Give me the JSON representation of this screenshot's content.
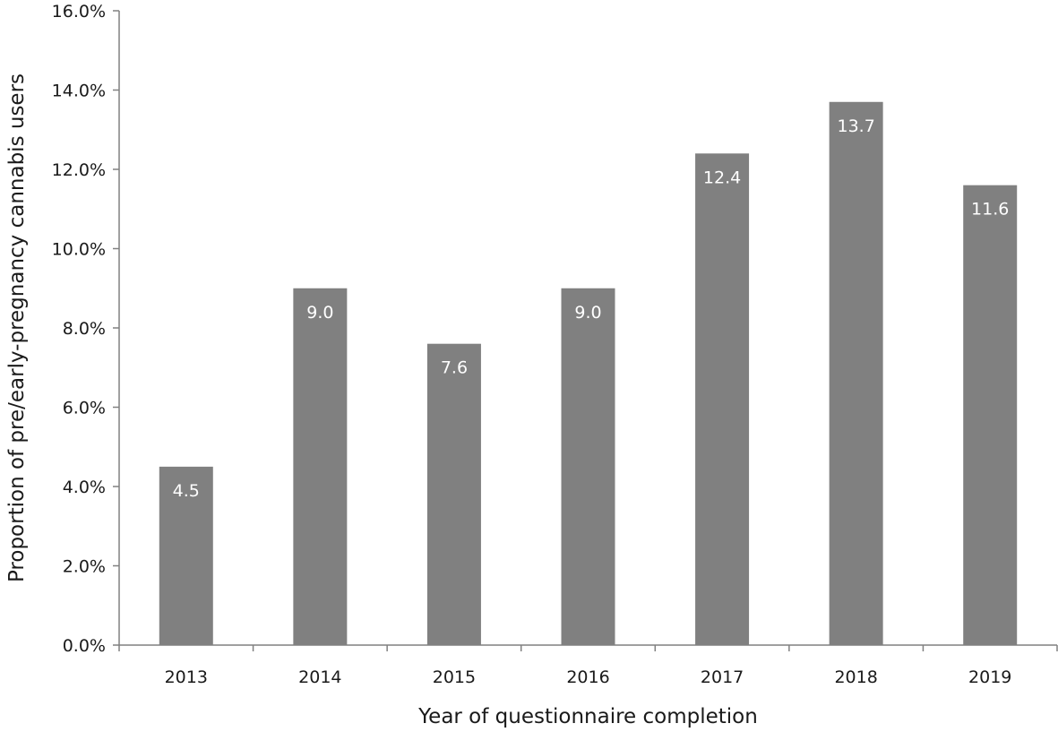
{
  "chart_data": {
    "type": "bar",
    "title": "",
    "xlabel": "Year of questionnaire completion",
    "ylabel": "Proportion of pre/early-pregnancy cannabis users",
    "categories": [
      "2013",
      "2014",
      "2015",
      "2016",
      "2017",
      "2018",
      "2019"
    ],
    "values": [
      4.5,
      9.0,
      7.6,
      9.0,
      12.4,
      13.7,
      11.6
    ],
    "data_labels": [
      "4.5",
      "9.0",
      "7.6",
      "9.0",
      "12.4",
      "13.7",
      "11.6"
    ],
    "ylim": [
      0,
      16
    ],
    "yticks": [
      0,
      2,
      4,
      6,
      8,
      10,
      12,
      14,
      16
    ],
    "ytick_labels": [
      "0.0%",
      "2.0%",
      "4.0%",
      "6.0%",
      "8.0%",
      "10.0%",
      "12.0%",
      "14.0%",
      "16.0%"
    ],
    "grid": false,
    "legend": "none",
    "bar_color": "#808080",
    "axis_color": "#808080"
  }
}
